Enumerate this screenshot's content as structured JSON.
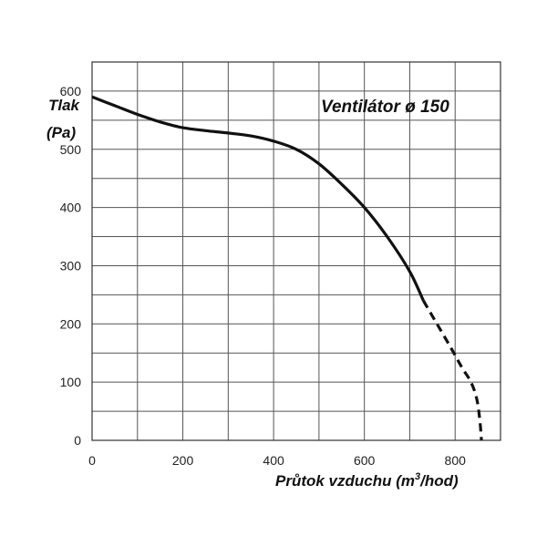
{
  "chart_data": {
    "type": "line",
    "title": "Ventilátor ø 150",
    "ylabel_line1": "Tlak",
    "ylabel_line2": "(Pa)",
    "xlabel_main": "Průtok vzduchu (m",
    "xlabel_sup": "3",
    "xlabel_end": "/hod)",
    "xlim": [
      0,
      900
    ],
    "ylim": [
      0,
      650
    ],
    "x_ticks": [
      0,
      200,
      400,
      600,
      800
    ],
    "y_ticks": [
      0,
      100,
      200,
      300,
      400,
      500,
      600
    ],
    "x_grid": [
      0,
      100,
      200,
      300,
      400,
      500,
      600,
      700,
      800,
      900
    ],
    "y_grid": [
      0,
      50,
      100,
      150,
      200,
      250,
      300,
      350,
      400,
      450,
      500,
      550,
      600,
      650
    ],
    "grid": true,
    "colors": {
      "curve": "#111111",
      "grid": "#555555",
      "background": "#ffffff"
    },
    "series": [
      {
        "style": "solid",
        "x": [
          0,
          50,
          100,
          150,
          200,
          250,
          300,
          350,
          400,
          450,
          500,
          550,
          600,
          650,
          700,
          730
        ],
        "y": [
          590,
          575,
          560,
          547,
          537,
          532,
          528,
          523,
          514,
          500,
          475,
          440,
          400,
          350,
          290,
          240
        ]
      },
      {
        "style": "dashed",
        "x": [
          730,
          760,
          790,
          815,
          835,
          848,
          855,
          858
        ],
        "y": [
          240,
          200,
          160,
          125,
          100,
          70,
          30,
          0
        ]
      }
    ]
  }
}
